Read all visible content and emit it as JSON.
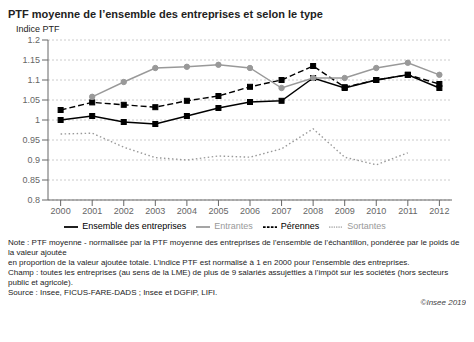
{
  "chart_data": {
    "type": "line",
    "title": "PTF moyenne de l’ensemble des entreprises et selon le type",
    "ylabel": "Indice PTF",
    "x": [
      2000,
      2001,
      2002,
      2003,
      2004,
      2005,
      2006,
      2007,
      2008,
      2009,
      2010,
      2011,
      2012
    ],
    "xlim": [
      1999.6,
      2012.4
    ],
    "xticks": [
      2000,
      2001,
      2002,
      2003,
      2004,
      2005,
      2006,
      2007,
      2008,
      2009,
      2010,
      2011,
      2012
    ],
    "ylim": [
      0.8,
      1.2
    ],
    "yticks": [
      0.8,
      0.85,
      0.9,
      0.95,
      1,
      1.05,
      1.1,
      1.15,
      1.2
    ],
    "grid": "y",
    "legend": "bottom",
    "series": [
      {
        "name": "Ensemble des entreprises",
        "color": "#000000",
        "marker": "square",
        "line_style": "solid",
        "values": [
          1.0,
          1.01,
          0.995,
          0.99,
          1.01,
          1.03,
          1.045,
          1.048,
          1.105,
          1.08,
          1.1,
          1.113,
          1.08
        ]
      },
      {
        "name": "Pérennes",
        "color": "#000000",
        "marker": "square",
        "line_style": "dashed",
        "values": [
          1.025,
          1.044,
          1.038,
          1.032,
          1.048,
          1.06,
          1.083,
          1.1,
          1.135,
          1.082,
          1.1,
          1.113,
          1.09
        ]
      },
      {
        "name": "Entrantes",
        "color": "#999999",
        "marker": "circle",
        "line_style": "solid",
        "values": [
          null,
          1.058,
          1.095,
          1.13,
          1.133,
          1.138,
          1.13,
          1.08,
          1.105,
          1.105,
          1.13,
          1.143,
          1.113
        ]
      },
      {
        "name": "Sortantes",
        "color": "#999999",
        "marker": "none",
        "line_style": "dotted",
        "values": [
          0.965,
          0.967,
          0.932,
          0.906,
          0.9,
          0.91,
          0.907,
          0.928,
          0.978,
          0.907,
          0.888,
          0.918,
          null
        ]
      }
    ],
    "annotations": [
      "Note : PTF moyenne - normalisée par la PTF moyenne des entreprises de l’ensemble de l’échantillon, pondérée par le poids de la valeur ajoutée",
      "en proportion de la valeur ajoutée totale. L’indice PTF est normalisé à 1 en 2000 pour l’ensemble des entreprises.",
      "Champ : toutes les entreprises (au sens de la LME) de plus de 9 salariés assujetties à l’impôt sur les sociétés (hors secteurs public et agricole).",
      "Source : Insee, FICUS-FARE-DADS ; Insee et DGFiP, LIFI.",
      "©Insee 2019"
    ]
  }
}
